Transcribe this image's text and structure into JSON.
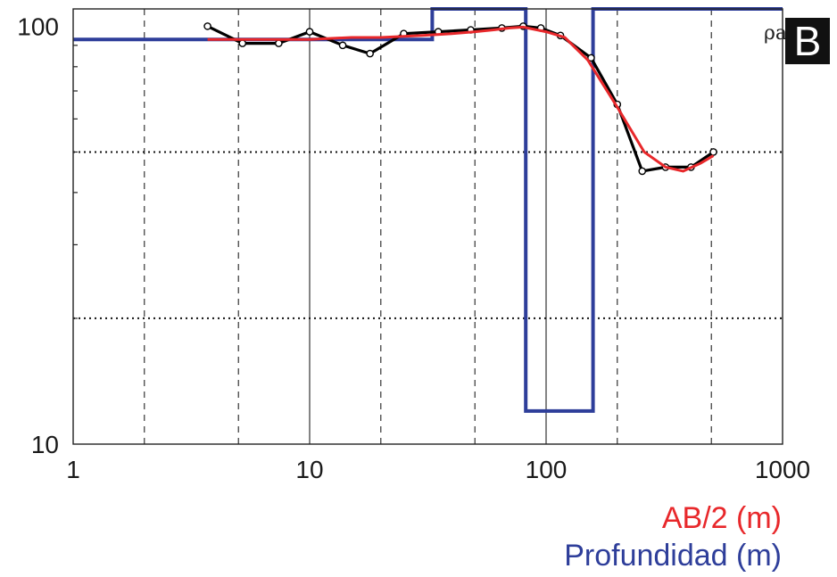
{
  "panel_label": "B",
  "chart_data": {
    "type": "line",
    "xscale": "log",
    "yscale": "log",
    "xlim": [
      1,
      1000
    ],
    "ylim": [
      10,
      110
    ],
    "x_ticks": [
      1,
      10,
      100,
      1000
    ],
    "x_tick_labels": [
      "1",
      "10",
      "100",
      "1000"
    ],
    "y_ticks": [
      10,
      100
    ],
    "y_tick_labels": [
      "10",
      "100"
    ],
    "x_dashed_grid": [
      2,
      5,
      20,
      50,
      200,
      500
    ],
    "x_solid_grid": [
      10,
      100
    ],
    "y_dotted_grid": [
      20,
      50
    ],
    "y_label": "ρa",
    "x_labels": [
      {
        "text": "AB/2 (m)",
        "color": "#e8282b"
      },
      {
        "text": "Profundidad (m)",
        "color": "#2e3e9a"
      }
    ],
    "series": [
      {
        "role": "observed",
        "color": "#000000",
        "markers": true,
        "x": [
          3.7,
          5.2,
          7.4,
          10,
          13.8,
          18,
          25,
          35,
          48,
          65,
          80,
          95,
          115,
          155,
          200,
          255,
          320,
          410,
          510
        ],
        "y": [
          100,
          91,
          91,
          97,
          90,
          86,
          96,
          97,
          98,
          99,
          100,
          99,
          95,
          84,
          65,
          45,
          46,
          46,
          50
        ]
      },
      {
        "role": "calculated",
        "color": "#e8282b",
        "markers": false,
        "x": [
          3.7,
          5,
          7,
          10,
          15,
          20,
          30,
          40,
          50,
          60,
          70,
          80,
          100,
          120,
          150,
          200,
          260,
          320,
          380,
          450,
          510
        ],
        "y": [
          93,
          93,
          93,
          93,
          94,
          94,
          95,
          96,
          97,
          98,
          99,
          99.5,
          97,
          94,
          83,
          64,
          50,
          46,
          45,
          47,
          49
        ]
      },
      {
        "role": "layer-model",
        "color": "#2e3e9a",
        "markers": false,
        "step": true,
        "x": [
          1,
          33,
          33,
          82,
          82,
          158,
          158,
          1000
        ],
        "y": [
          93,
          93,
          110,
          110,
          12,
          12,
          110,
          110
        ]
      }
    ]
  }
}
